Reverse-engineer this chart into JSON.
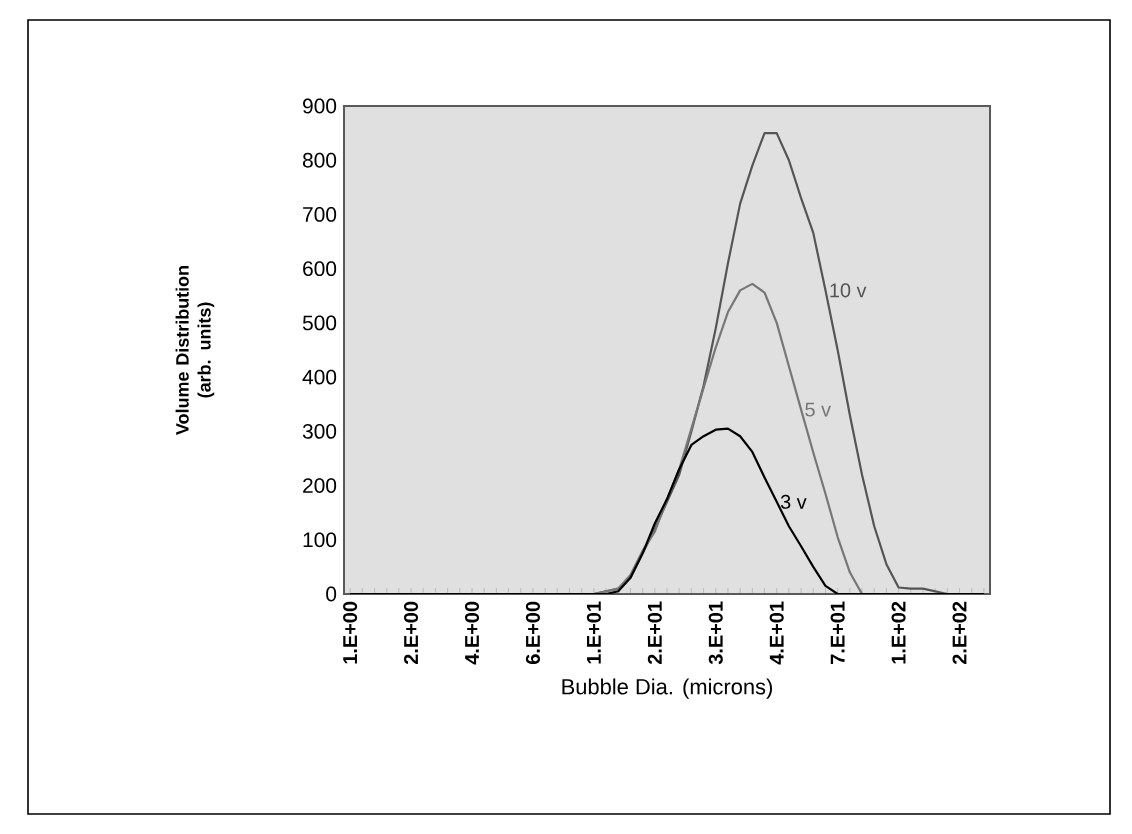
{
  "chart_data": {
    "type": "line",
    "xlabel": "Bubble Dia. (microns)",
    "ylabel": "Volume Distribution (arb. units)",
    "categories": [
      "1.E+00",
      null,
      null,
      null,
      null,
      "2.E+00",
      null,
      null,
      null,
      null,
      "4.E+00",
      null,
      null,
      null,
      null,
      "6.E+00",
      null,
      null,
      null,
      null,
      "1.E+01",
      null,
      null,
      null,
      null,
      "2.E+01",
      null,
      null,
      null,
      null,
      "3.E+01",
      null,
      null,
      null,
      null,
      "4.E+01",
      null,
      null,
      null,
      null,
      "7.E+01",
      null,
      null,
      null,
      null,
      "1.E+02",
      null,
      null,
      null,
      null,
      "2.E+02",
      null,
      null
    ],
    "ylim": [
      0,
      900
    ],
    "yticks": [
      0,
      100,
      200,
      300,
      400,
      500,
      600,
      700,
      800,
      900
    ],
    "grid": false,
    "legend": false,
    "marker": "none",
    "line_style": "solid",
    "series": [
      {
        "name": "10 v",
        "color": "#555555",
        "values": [
          0,
          0,
          0,
          0,
          0,
          0,
          0,
          0,
          0,
          0,
          0,
          0,
          0,
          0,
          0,
          0,
          0,
          0,
          0,
          0,
          0,
          5,
          10,
          30,
          75,
          120,
          170,
          220,
          300,
          384,
          490,
          610,
          720,
          790,
          850,
          850,
          800,
          730,
          666,
          560,
          450,
          330,
          220,
          125,
          55,
          12,
          10,
          10,
          5,
          0,
          0,
          0,
          0
        ]
      },
      {
        "name": "5 v",
        "color": "#777777",
        "values": [
          0,
          0,
          0,
          0,
          0,
          0,
          0,
          0,
          0,
          0,
          0,
          0,
          0,
          0,
          0,
          0,
          0,
          0,
          0,
          0,
          0,
          5,
          10,
          35,
          80,
          115,
          175,
          230,
          305,
          380,
          455,
          520,
          560,
          572,
          556,
          500,
          420,
          340,
          261,
          185,
          105,
          40,
          0,
          0,
          0,
          0,
          0,
          0,
          0,
          0,
          0,
          0,
          0
        ]
      },
      {
        "name": "3 v",
        "color": "#000000",
        "values": [
          0,
          0,
          0,
          0,
          0,
          0,
          0,
          0,
          0,
          0,
          0,
          0,
          0,
          0,
          0,
          0,
          0,
          0,
          0,
          0,
          0,
          0,
          5,
          30,
          75,
          130,
          175,
          230,
          275,
          291,
          303,
          305,
          291,
          262,
          215,
          170,
          125,
          88,
          50,
          15,
          0,
          0,
          0,
          0,
          0,
          0,
          0,
          0,
          0,
          0,
          0,
          0,
          0
        ]
      }
    ]
  }
}
